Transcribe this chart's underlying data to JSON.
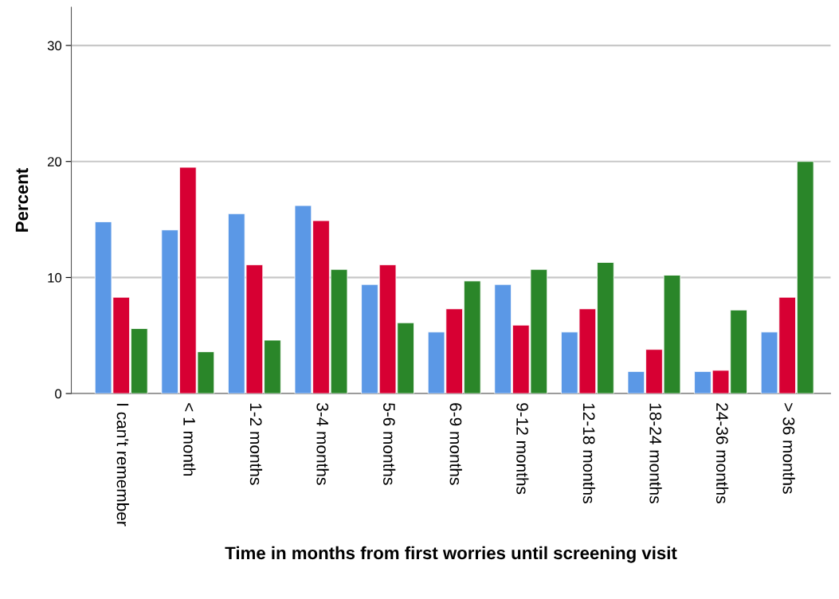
{
  "chart_data": {
    "type": "bar",
    "xlabel": "Time in months from first worries until screening visit",
    "ylabel": "Percent",
    "categories": [
      "I can't remember",
      "< 1 month",
      "1-2 months",
      "3-4 months",
      "5-6 months",
      "6-9 months",
      "9-12 months",
      "12-18 months",
      "18-24 months",
      "24-36 months",
      "> 36 months"
    ],
    "series": [
      {
        "color": "#5b98e6",
        "values": [
          14.8,
          14.1,
          15.5,
          16.2,
          9.4,
          5.3,
          9.4,
          5.3,
          1.9,
          1.9,
          5.3
        ]
      },
      {
        "color": "#d70033",
        "values": [
          8.3,
          19.5,
          11.1,
          14.9,
          11.1,
          7.3,
          5.9,
          7.3,
          3.8,
          2.0,
          8.3
        ]
      },
      {
        "color": "#2a8629",
        "values": [
          5.6,
          3.6,
          4.6,
          10.7,
          6.1,
          9.7,
          10.7,
          11.3,
          10.2,
          7.2,
          20.0
        ]
      }
    ],
    "ylim": [
      0,
      33.3
    ],
    "yticks": [
      0,
      10,
      20,
      30
    ],
    "grid": "y"
  }
}
